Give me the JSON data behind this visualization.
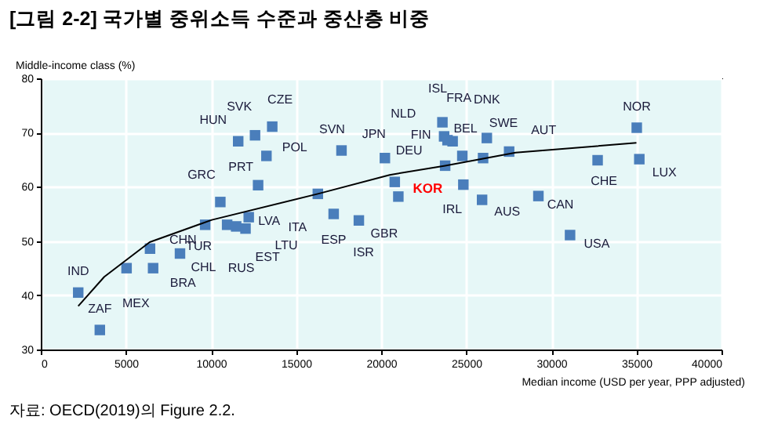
{
  "chart_data": {
    "type": "scatter",
    "title": "[그림 2-2] 국가별 중위소득 수준과 중산층 비중",
    "ylabel": "Middle-income class (%)",
    "xlabel": "Median income (USD per year, PPP adjusted)",
    "xlim": [
      0,
      40000
    ],
    "xticks": [
      0,
      5000,
      10000,
      15000,
      20000,
      25000,
      30000,
      35000,
      40000
    ],
    "ylim": [
      30,
      80
    ],
    "yticks": [
      30,
      40,
      50,
      60,
      70,
      80
    ],
    "grid": true,
    "series": [
      {
        "marker": "square",
        "color": "#4a7ebb",
        "x": [
          2200,
          3470,
          5040,
          6600,
          6420,
          8180,
          9660,
          10550,
          11600,
          12590,
          13600,
          13260,
          12770,
          10950,
          11480,
          12030,
          12220,
          16280,
          17210,
          18690,
          17670,
          20220,
          21010,
          23760,
          23600,
          23700,
          24200,
          23900,
          24770,
          26210,
          25990,
          27520,
          24830,
          25930,
          29240,
          31100,
          32720,
          35170,
          35020
        ],
        "values": [
          40.5,
          33.6,
          45.0,
          45.0,
          48.6,
          47.7,
          53.0,
          57.2,
          68.4,
          69.5,
          71.1,
          65.7,
          60.3,
          53.0,
          52.7,
          52.3,
          54.4,
          58.7,
          55.0,
          53.8,
          66.7,
          65.3,
          58.2,
          63.9,
          71.9,
          69.3,
          68.4,
          68.6,
          65.7,
          69.0,
          65.3,
          66.5,
          60.4,
          57.6,
          58.3,
          51.1,
          64.9,
          65.1,
          70.9
        ]
      },
      {
        "marker": "square",
        "name": "KOR",
        "color": "#4a7ebb",
        "x": [
          20800
        ],
        "values": [
          60.9
        ]
      },
      {
        "type": "line",
        "marker": "none",
        "color": "#000000",
        "x": [
          2200,
          3730,
          6400,
          10050,
          16280,
          20500,
          23760,
          27900,
          35000
        ],
        "values": [
          38.0,
          43.4,
          49.8,
          53.9,
          58.7,
          62.2,
          63.9,
          66.3,
          68.1
        ]
      }
    ],
    "annotations": [
      {
        "text": "IND",
        "x": 2200,
        "y": 40.5
      },
      {
        "text": "ZAF",
        "x": 3470,
        "y": 33.6
      },
      {
        "text": "MEX",
        "x": 5040,
        "y": 45.0
      },
      {
        "text": "BRA",
        "x": 6600,
        "y": 45.0
      },
      {
        "text": "CHN",
        "x": 6420,
        "y": 48.6
      },
      {
        "text": "CHL",
        "x": 8180,
        "y": 47.7
      },
      {
        "text": "TUR",
        "x": 9660,
        "y": 53.0
      },
      {
        "text": "GRC",
        "x": 10550,
        "y": 57.2
      },
      {
        "text": "HUN",
        "x": 11600,
        "y": 68.4
      },
      {
        "text": "SVK",
        "x": 12590,
        "y": 69.5
      },
      {
        "text": "CZE",
        "x": 13600,
        "y": 71.1
      },
      {
        "text": "POL",
        "x": 13260,
        "y": 65.7
      },
      {
        "text": "PRT",
        "x": 12770,
        "y": 60.3
      },
      {
        "text": "RUS",
        "x": 10950,
        "y": 53.0
      },
      {
        "text": "EST",
        "x": 11480,
        "y": 52.7
      },
      {
        "text": "LTU",
        "x": 12030,
        "y": 52.3
      },
      {
        "text": "LVA",
        "x": 12220,
        "y": 54.4
      },
      {
        "text": "ITA",
        "x": 16280,
        "y": 58.7
      },
      {
        "text": "ESP",
        "x": 17210,
        "y": 55.0
      },
      {
        "text": "ISR",
        "x": 18690,
        "y": 53.8
      },
      {
        "text": "SVN",
        "x": 17670,
        "y": 66.7
      },
      {
        "text": "JPN",
        "x": 20220,
        "y": 65.3
      },
      {
        "text": "GBR",
        "x": 21010,
        "y": 58.2
      },
      {
        "text": "DEU",
        "x": 23760,
        "y": 63.9
      },
      {
        "text": "ISL",
        "x": 23600,
        "y": 71.9
      },
      {
        "text": "NLD",
        "x": 23700,
        "y": 69.3
      },
      {
        "text": "FRA",
        "x": 24200,
        "y": 68.4
      },
      {
        "text": "FIN",
        "x": 23900,
        "y": 68.6
      },
      {
        "text": "BEL",
        "x": 24770,
        "y": 65.7
      },
      {
        "text": "DNK",
        "x": 26210,
        "y": 69.0
      },
      {
        "text": "SWE",
        "x": 25990,
        "y": 65.3
      },
      {
        "text": "AUT",
        "x": 27520,
        "y": 66.5
      },
      {
        "text": "IRL",
        "x": 24830,
        "y": 60.4
      },
      {
        "text": "AUS",
        "x": 25930,
        "y": 57.6
      },
      {
        "text": "CAN",
        "x": 29240,
        "y": 58.3
      },
      {
        "text": "USA",
        "x": 31100,
        "y": 51.1
      },
      {
        "text": "CHE",
        "x": 32720,
        "y": 64.9
      },
      {
        "text": "LUX",
        "x": 35170,
        "y": 65.1
      },
      {
        "text": "NOR",
        "x": 35020,
        "y": 70.9
      },
      "자료: OECD(2019)의 Figure 2.2."
    ]
  }
}
